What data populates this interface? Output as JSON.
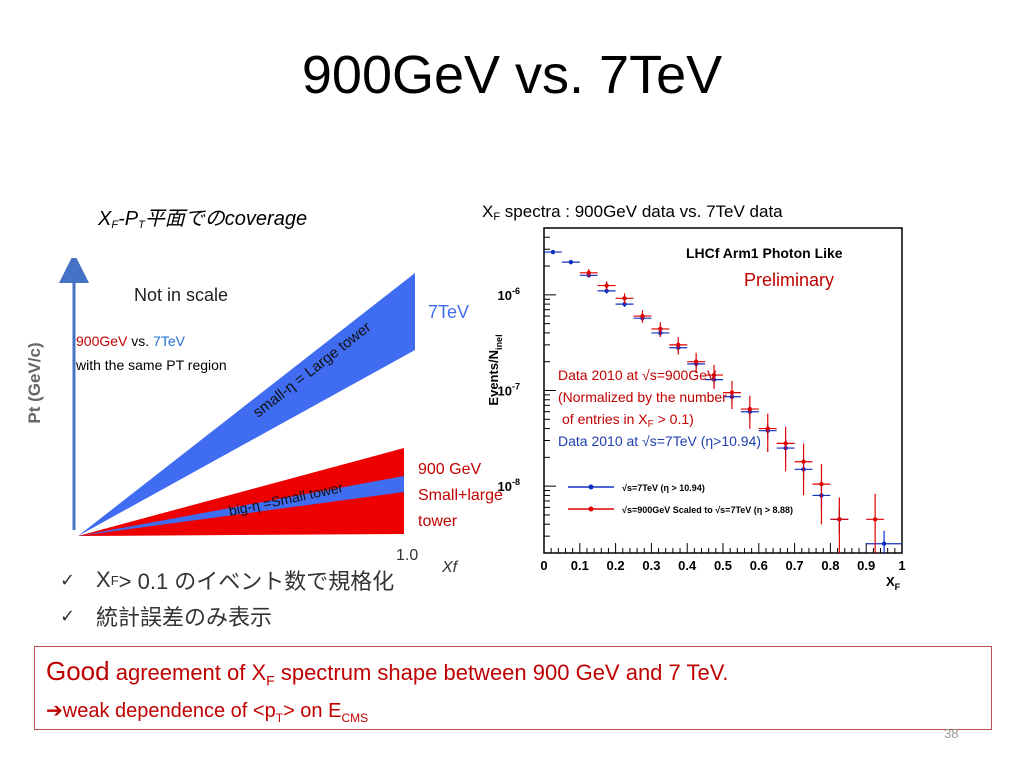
{
  "slide": {
    "title": "900GeV vs. 7TeV",
    "page_number": "38"
  },
  "left_panel": {
    "caption_x": "X",
    "caption_x_sub": "F",
    "caption_dash": "-P",
    "caption_p_sub": "T",
    "caption_rest": "平面でのcoverage",
    "ylabel": "Pt (GeV/c)",
    "not_in_scale": "Not in scale",
    "label_7tev": "7TeV",
    "large_tower_label": "small-η = Large tower",
    "small_tower_label": "big-η =Small tower",
    "compare_900": "900GeV",
    "compare_vs": " vs. ",
    "compare_7": "7TeV",
    "compare_line2": "with the same PT region",
    "label_900_line1": "900 GeV",
    "label_900_line2": "Small+large",
    "label_900_line3": "tower",
    "x_tick": "1.0",
    "x_axis_label": "Xf"
  },
  "right_panel": {
    "caption_x": "X",
    "caption_x_sub": "F",
    "caption_rest": " spectra : 900GeV data vs. 7TeV data",
    "ylabel": "Events/N",
    "ylabel_sub": "inel",
    "plot_title": "LHCf Arm1 Photon Like",
    "preliminary": "Preliminary",
    "note_900_line1": "Data 2010 at √s=900GeV",
    "note_900_line2": "(Normalized by the number",
    "note_900_line3": "of entries in X",
    "note_900_line3_sub": "F",
    "note_900_line3_end": " > 0.1)",
    "note_7tev": "Data 2010 at √s=7TeV (η>10.94)",
    "legend_7tev": "√s=7TeV (η > 10.94)",
    "legend_900": "√s=900GeV Scaled to √s=7TeV (η > 8.88)",
    "x_axis_label": "X",
    "x_axis_label_sub": "F"
  },
  "bullets": [
    {
      "check": "✓",
      "text_x": "X",
      "text_sub": "F",
      "text_rest": " > 0.1 のイベント数で規格化"
    },
    {
      "check": "✓",
      "text": "統計誤差のみ表示"
    }
  ],
  "conclusion": {
    "good": "Good",
    "line1_a": " agreement of X",
    "line1_sub": "F",
    "line1_b": " spectrum shape between 900 GeV and 7 TeV.",
    "arrow": "➔",
    "line2_a": "weak dependence of <p",
    "line2_sub": "T",
    "line2_b": "> on E",
    "line2_sub2": "CMS"
  },
  "colors": {
    "red_accent": "#c00000",
    "blue_7tev": "#1f3fb0",
    "blue_cone": "#3f6cf0",
    "red_cone": "#ee0000",
    "box_border": "#c0504d"
  },
  "chart_data": {
    "type": "scatter",
    "title": "LHCf Arm1 Photon Like",
    "xlabel": "XF",
    "ylabel": "Events/Ninel",
    "log_y": true,
    "xlim": [
      0,
      1
    ],
    "ylim": [
      2e-09,
      5e-06
    ],
    "x_ticks": [
      "0",
      "0.1",
      "0.2",
      "0.3",
      "0.4",
      "0.5",
      "0.6",
      "0.7",
      "0.8",
      "0.9",
      "1"
    ],
    "y_ticks": [
      {
        "label": "10",
        "exp": "-6",
        "value": 1e-06
      },
      {
        "label": "10",
        "exp": "-7",
        "value": 1e-07
      },
      {
        "label": "10",
        "exp": "-8",
        "value": 1e-08
      }
    ],
    "series": [
      {
        "name": "√s=7TeV (η > 10.94)",
        "color": "#1030c0",
        "x": [
          0.025,
          0.075,
          0.125,
          0.175,
          0.225,
          0.275,
          0.325,
          0.375,
          0.425,
          0.475,
          0.525,
          0.575,
          0.625,
          0.675,
          0.725,
          0.775,
          0.825,
          0.95
        ],
        "y": [
          2.8e-06,
          2.2e-06,
          1.6e-06,
          1.1e-06,
          8e-07,
          5.7e-07,
          4e-07,
          2.8e-07,
          1.9e-07,
          1.3e-07,
          8.6e-08,
          6e-08,
          3.8e-08,
          2.5e-08,
          1.5e-08,
          8e-09,
          4.5e-09,
          2.5e-09
        ],
        "xerr": [
          0.025,
          0.025,
          0.025,
          0.025,
          0.025,
          0.025,
          0.025,
          0.025,
          0.025,
          0.025,
          0.025,
          0.025,
          0.025,
          0.025,
          0.025,
          0.025,
          0.025,
          0.05
        ]
      },
      {
        "name": "√s=900GeV Scaled to √s=7TeV (η > 8.88)",
        "color": "#e00000",
        "x": [
          0.125,
          0.175,
          0.225,
          0.275,
          0.325,
          0.375,
          0.425,
          0.475,
          0.525,
          0.575,
          0.625,
          0.675,
          0.725,
          0.775,
          0.825,
          0.925
        ],
        "y": [
          1.7e-06,
          1.25e-06,
          9.2e-07,
          6e-07,
          4.4e-07,
          3e-07,
          2e-07,
          1.45e-07,
          9.5e-08,
          6.4e-08,
          4e-08,
          2.8e-08,
          1.8e-08,
          1.05e-08,
          4.5e-09,
          4.5e-09
        ],
        "xerr": [
          0.025,
          0.025,
          0.025,
          0.025,
          0.025,
          0.025,
          0.025,
          0.025,
          0.025,
          0.025,
          0.025,
          0.025,
          0.025,
          0.025,
          0.025,
          0.025
        ]
      }
    ]
  }
}
